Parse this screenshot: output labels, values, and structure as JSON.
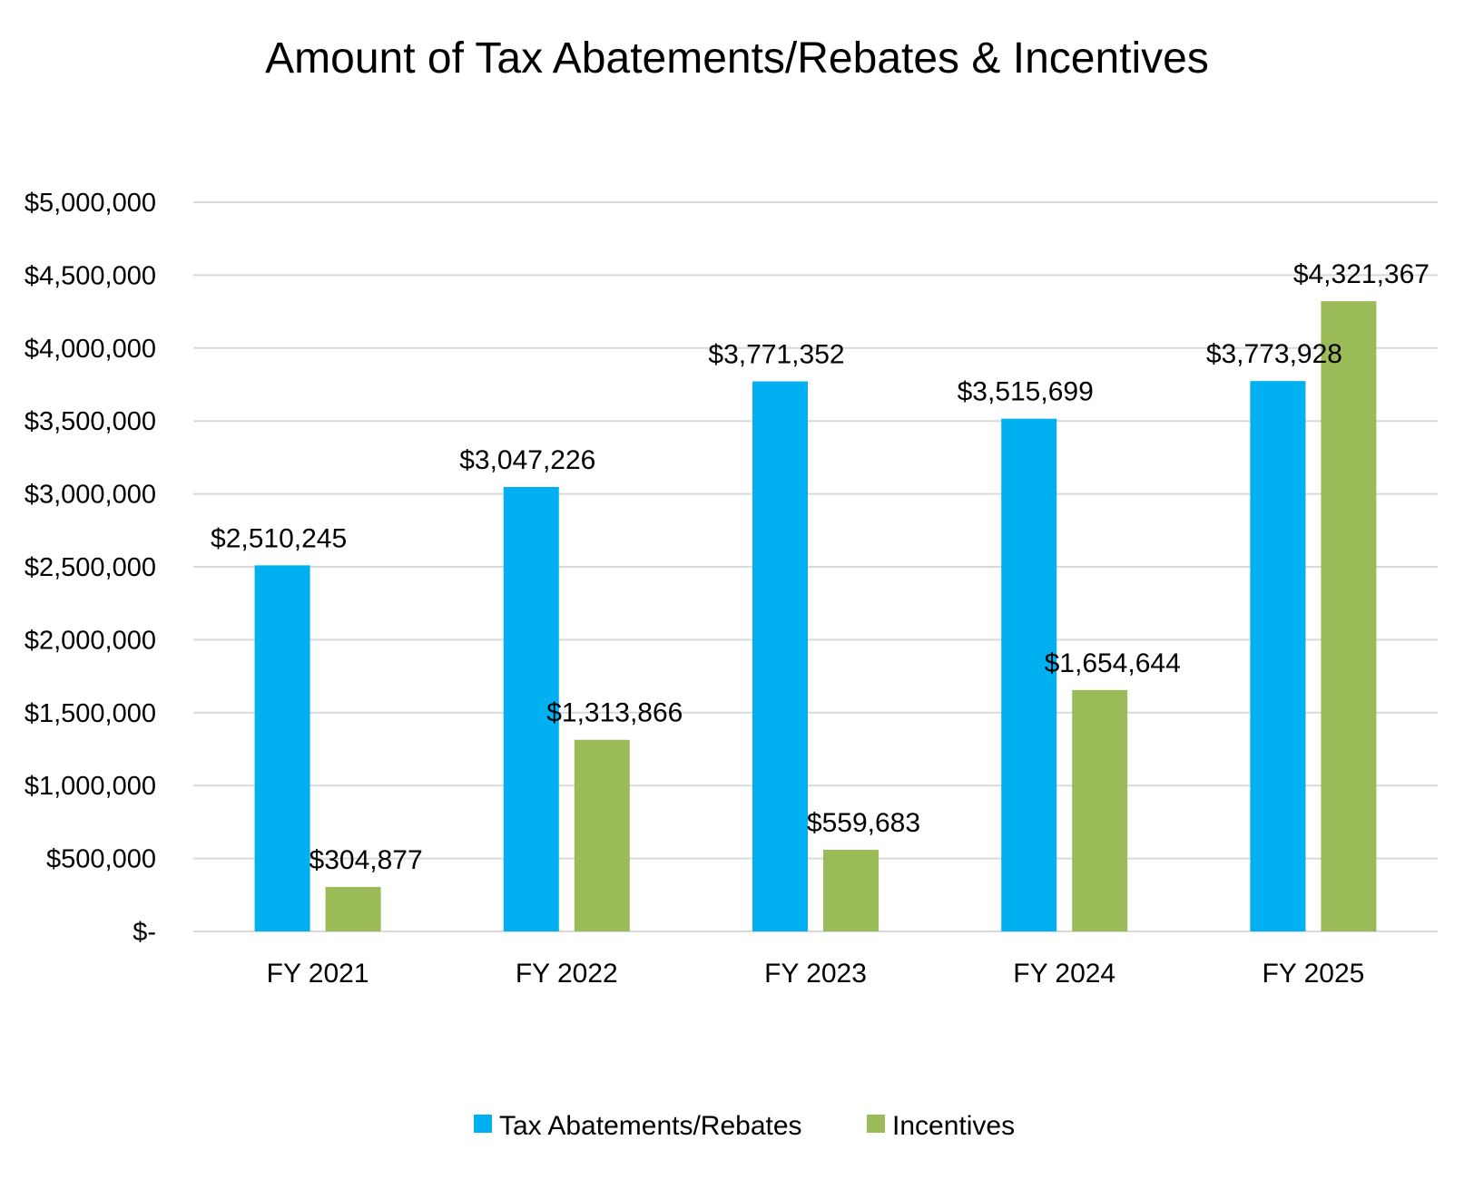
{
  "chart_data": {
    "type": "bar",
    "title": "Amount of Tax Abatements/Rebates & Incentives",
    "xlabel": "",
    "ylabel": "",
    "categories": [
      "FY 2021",
      "FY 2022",
      "FY 2023",
      "FY 2024",
      "FY 2025"
    ],
    "series": [
      {
        "name": "Tax Abatements/Rebates",
        "color": "#00b0f0",
        "values": [
          2510245,
          3047226,
          3771352,
          3515699,
          3773928
        ],
        "labels": [
          "$2,510,245",
          "$3,047,226",
          "$3,771,352",
          "$3,515,699",
          "$3,773,928"
        ]
      },
      {
        "name": "Incentives",
        "color": "#9bbb59",
        "values": [
          304877,
          1313866,
          559683,
          1654644,
          4321367
        ],
        "labels": [
          "$304,877",
          "$1,313,866",
          "$559,683",
          "$1,654,644",
          "$4,321,367"
        ]
      }
    ],
    "ylim": [
      0,
      5000000
    ],
    "yticks": [
      0,
      500000,
      1000000,
      1500000,
      2000000,
      2500000,
      3000000,
      3500000,
      4000000,
      4500000,
      5000000
    ],
    "ytick_labels": [
      "$-",
      "$500,000",
      "$1,000,000",
      "$1,500,000",
      "$2,000,000",
      "$2,500,000",
      "$3,000,000",
      "$3,500,000",
      "$4,000,000",
      "$4,500,000",
      "$5,000,000"
    ],
    "grid": true,
    "legend": "bottom"
  }
}
